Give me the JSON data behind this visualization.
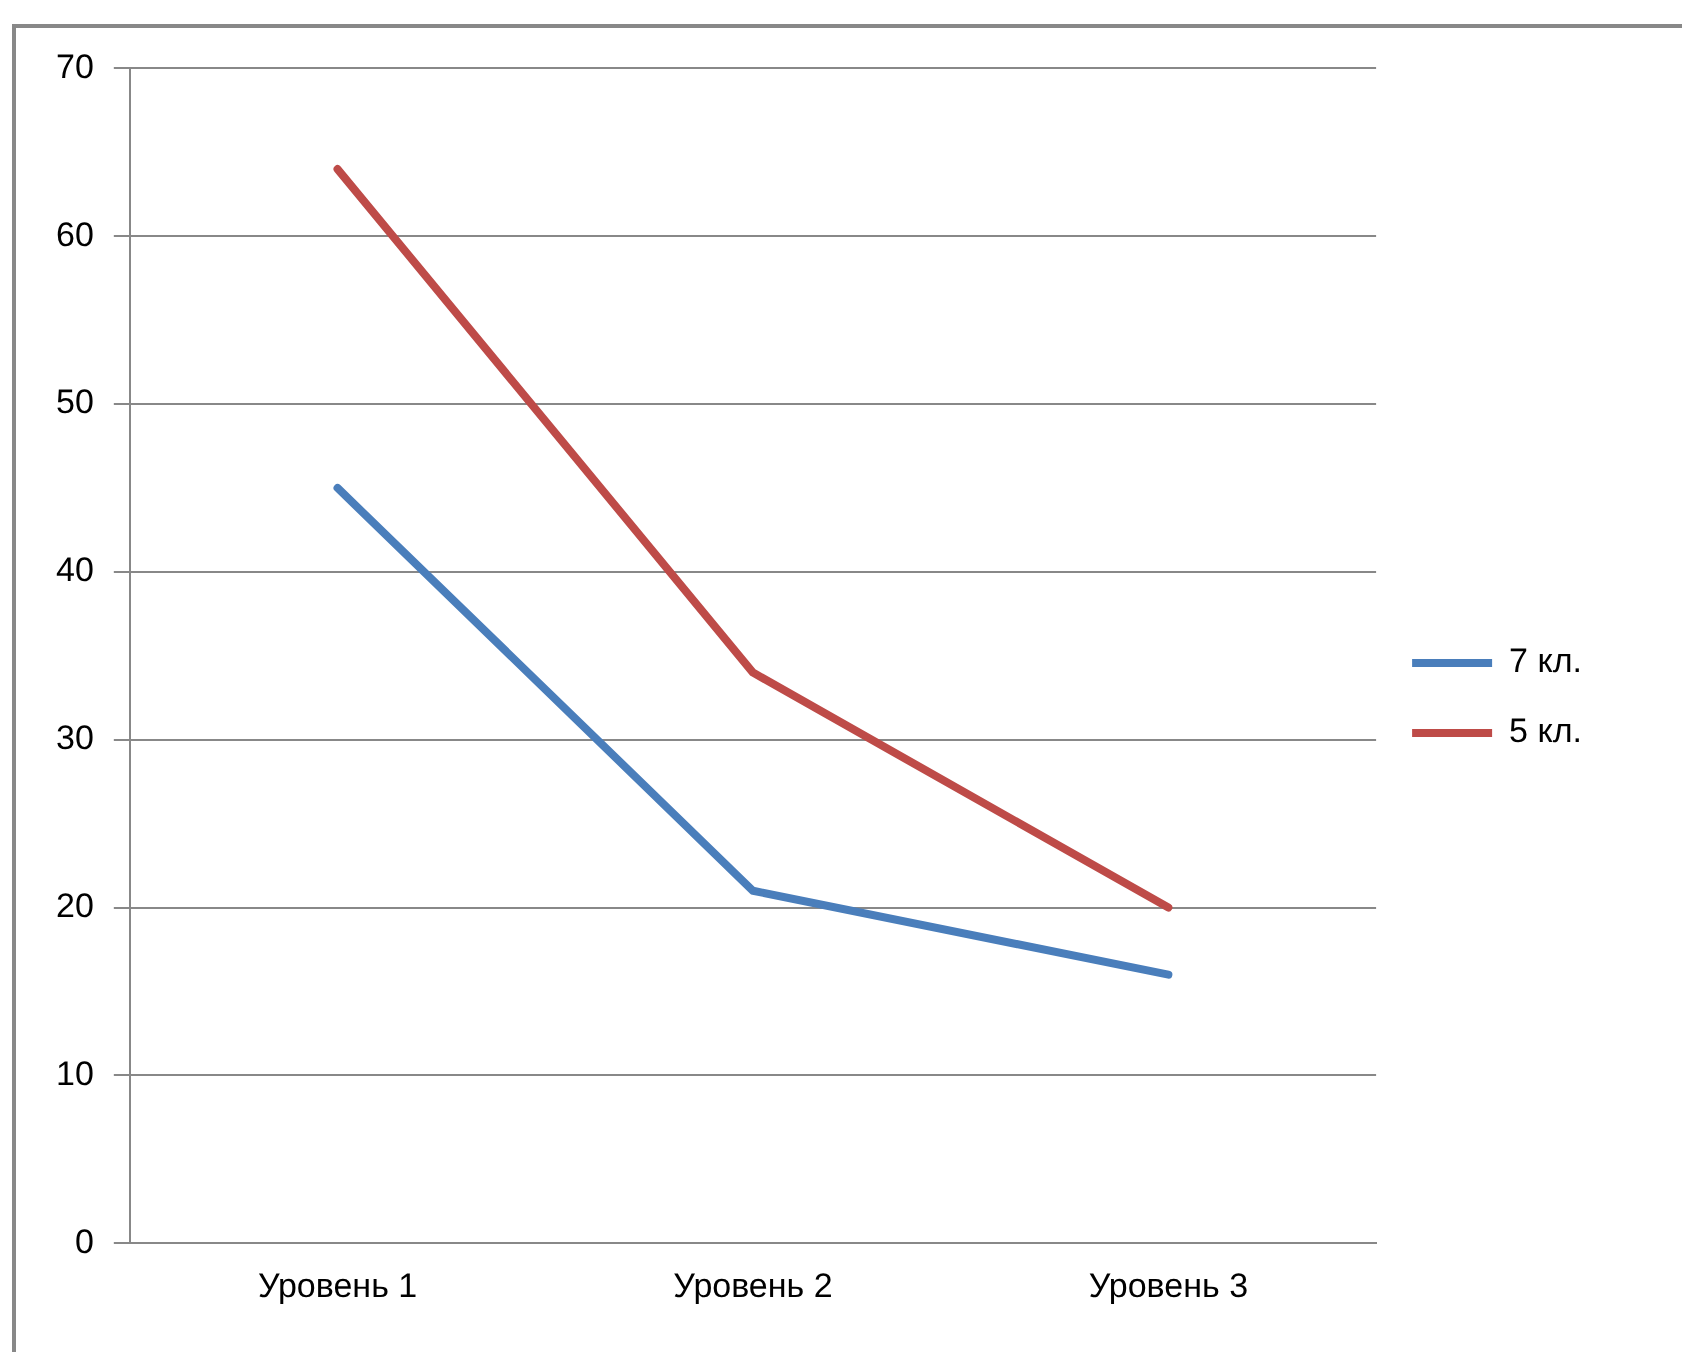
{
  "chart_data": {
    "type": "line",
    "categories": [
      "Уровень 1",
      "Уровень 2",
      "Уровень 3"
    ],
    "series": [
      {
        "name": "7 кл.",
        "color": "#4a7ebb",
        "values": [
          45,
          21,
          16
        ]
      },
      {
        "name": "5 кл.",
        "color": "#be4b48",
        "values": [
          64,
          34,
          20
        ]
      }
    ],
    "ylim": [
      0,
      70
    ],
    "yticks": [
      0,
      10,
      20,
      30,
      40,
      50,
      60,
      70
    ],
    "grid": "y",
    "legend": "right",
    "marker": "none",
    "line_style": "solid"
  }
}
